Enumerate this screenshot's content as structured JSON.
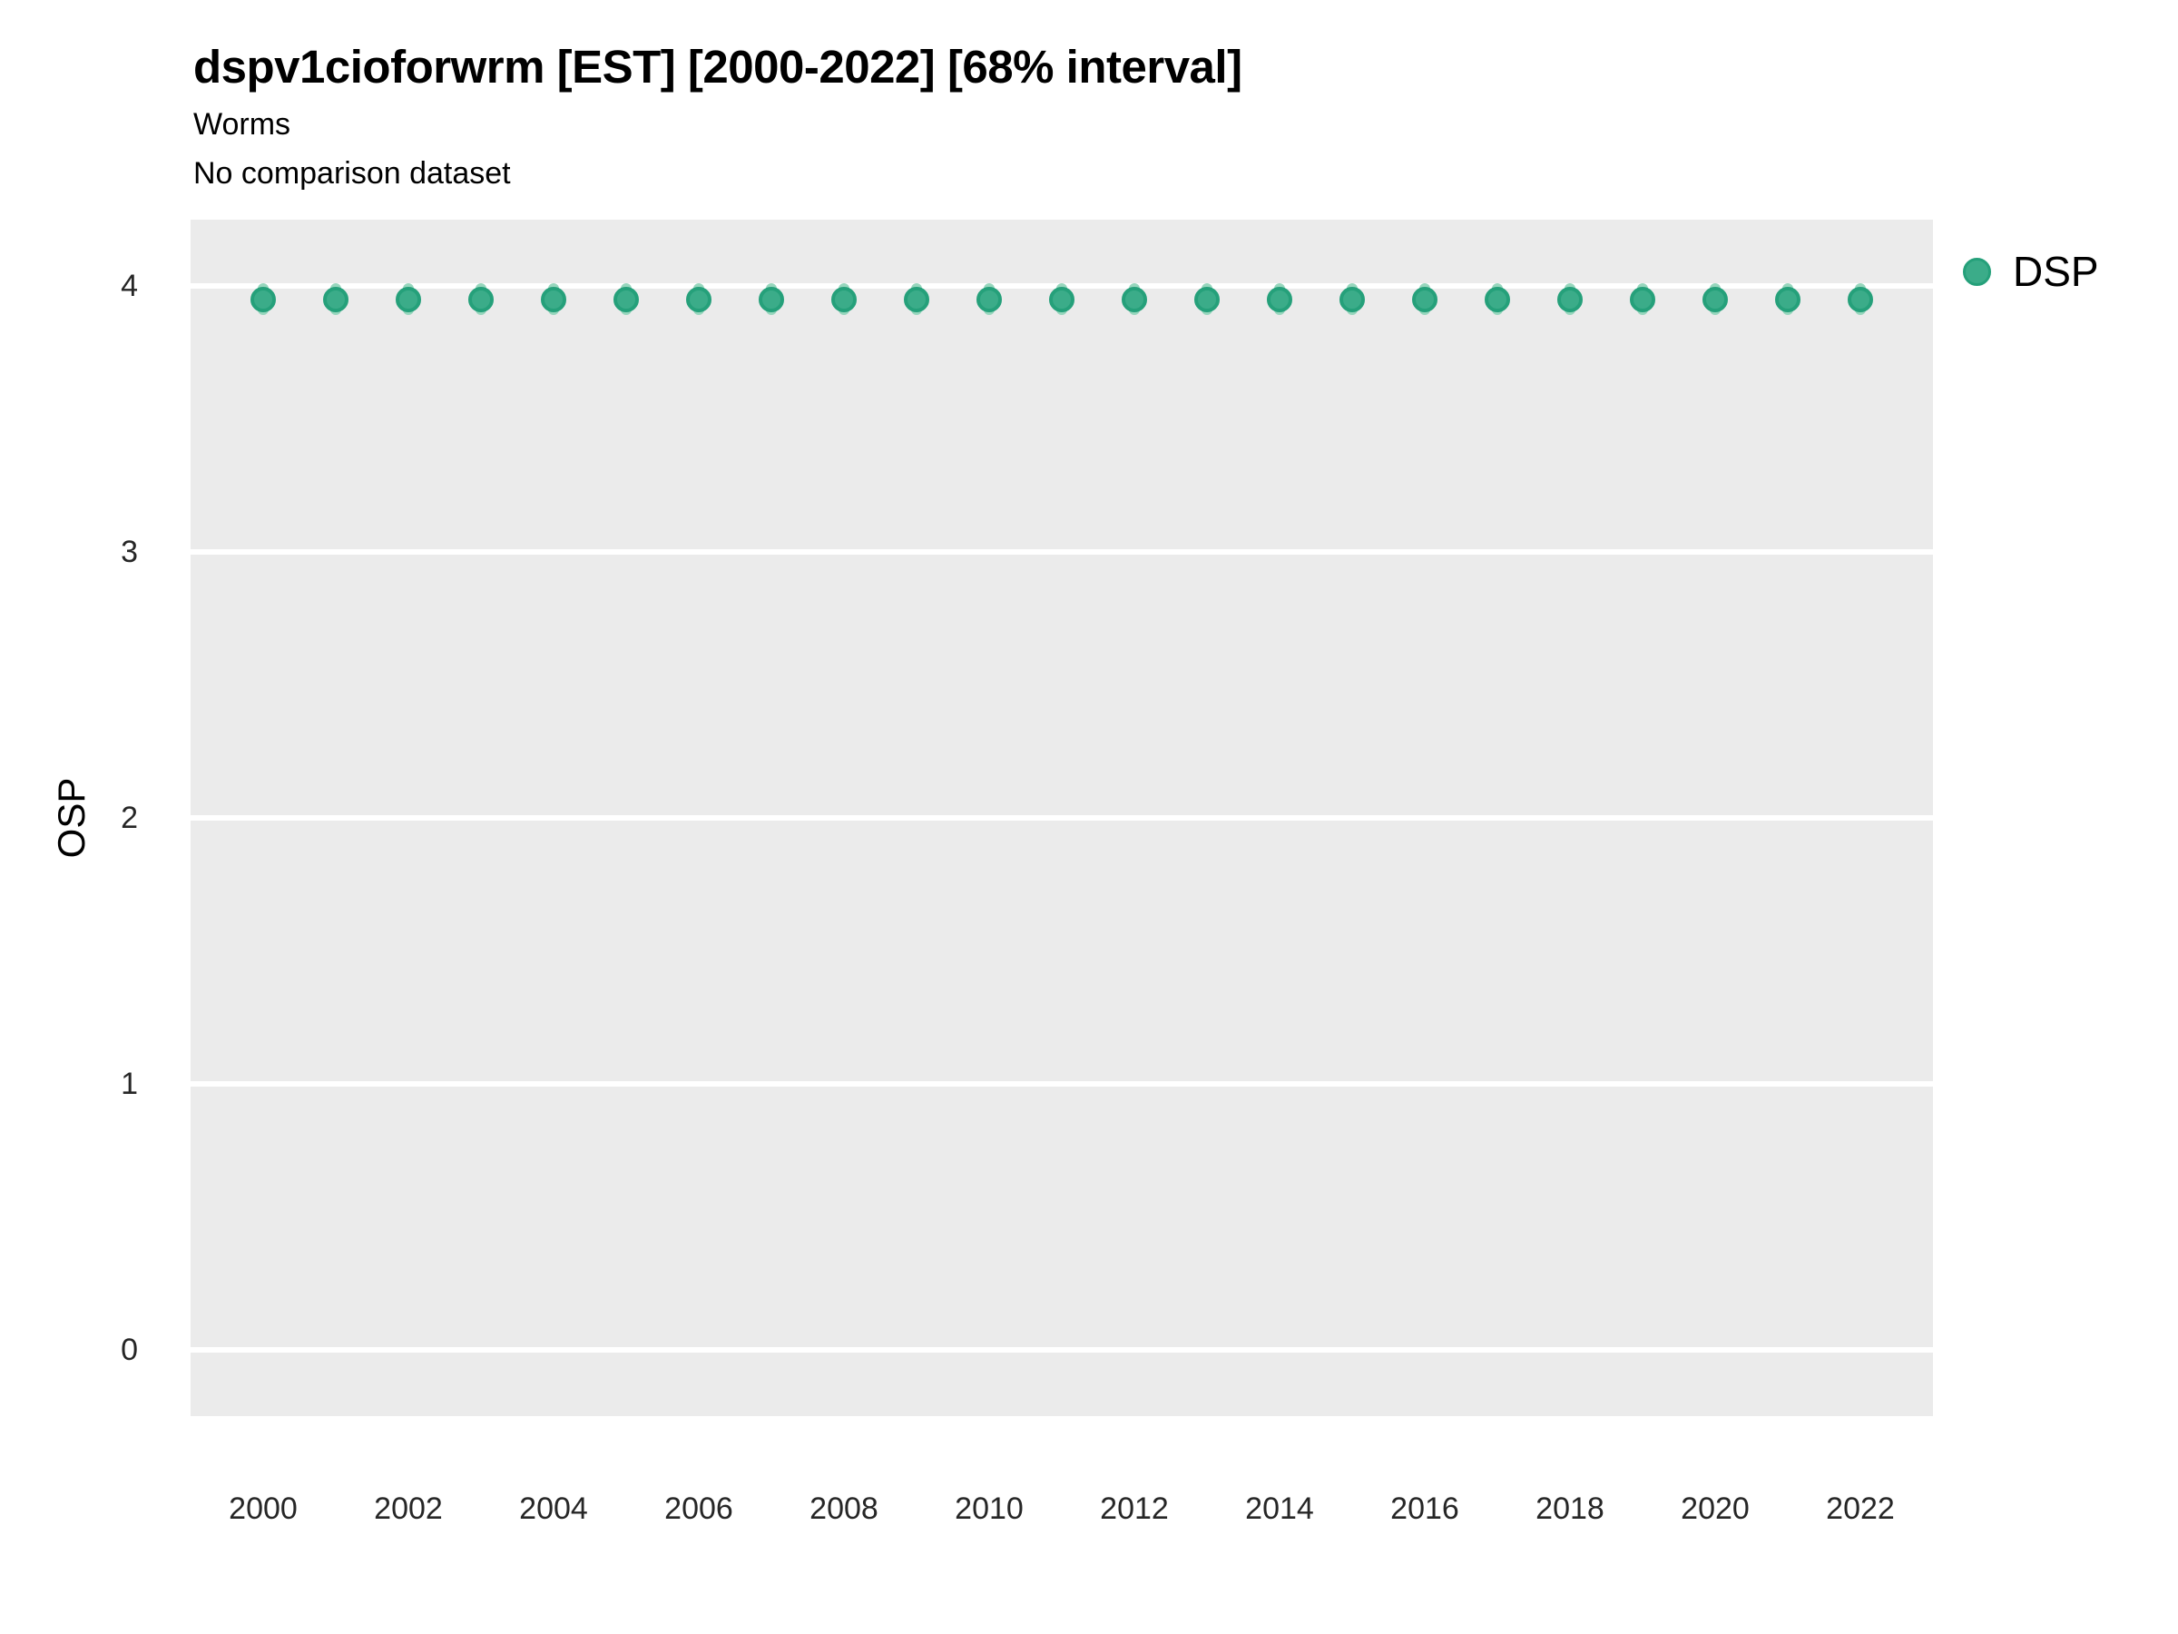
{
  "header": {
    "title": "dspv1cioforwrm [EST] [2000-2022] [68% interval]",
    "subtitle": "Worms",
    "comparison_note": "No comparison dataset"
  },
  "legend": {
    "items": [
      {
        "label": "DSP"
      }
    ]
  },
  "colors": {
    "panel_background": "#EBEBEB",
    "gridline": "#FFFFFF",
    "point_fill": "#3BAC89",
    "point_stroke": "#25A07A",
    "interval_fill": "#97D6BD",
    "tick_text": "#262626",
    "text": "#000000"
  },
  "chart_data": {
    "type": "scatter",
    "title": "dspv1cioforwrm [EST] [2000-2022] [68% interval]",
    "subtitle": "Worms",
    "note": "No comparison dataset",
    "xlabel": "",
    "ylabel": "OSP",
    "xlim": [
      1999,
      2023
    ],
    "ylim": [
      -0.25,
      4.25
    ],
    "xticks": [
      2000,
      2002,
      2004,
      2006,
      2008,
      2010,
      2012,
      2014,
      2016,
      2018,
      2020,
      2022
    ],
    "yticks": [
      0,
      1,
      2,
      3,
      4
    ],
    "grid": "horizontal-major-only",
    "legend_position": "top-right",
    "series": [
      {
        "name": "DSP",
        "x": [
          2000,
          2001,
          2002,
          2003,
          2004,
          2005,
          2006,
          2007,
          2008,
          2009,
          2010,
          2011,
          2012,
          2013,
          2014,
          2015,
          2016,
          2017,
          2018,
          2019,
          2020,
          2021,
          2022
        ],
        "y": [
          3.95,
          3.95,
          3.95,
          3.95,
          3.95,
          3.95,
          3.95,
          3.95,
          3.95,
          3.95,
          3.95,
          3.95,
          3.95,
          3.95,
          3.95,
          3.95,
          3.95,
          3.95,
          3.95,
          3.95,
          3.95,
          3.95,
          3.95
        ],
        "interval_low": [
          3.89,
          3.89,
          3.89,
          3.89,
          3.89,
          3.89,
          3.89,
          3.89,
          3.89,
          3.89,
          3.89,
          3.89,
          3.89,
          3.89,
          3.89,
          3.89,
          3.89,
          3.89,
          3.89,
          3.89,
          3.89,
          3.89,
          3.89
        ],
        "interval_high": [
          4.01,
          4.01,
          4.01,
          4.01,
          4.01,
          4.01,
          4.01,
          4.01,
          4.01,
          4.01,
          4.01,
          4.01,
          4.01,
          4.01,
          4.01,
          4.01,
          4.01,
          4.01,
          4.01,
          4.01,
          4.01,
          4.01,
          4.01
        ]
      }
    ]
  }
}
